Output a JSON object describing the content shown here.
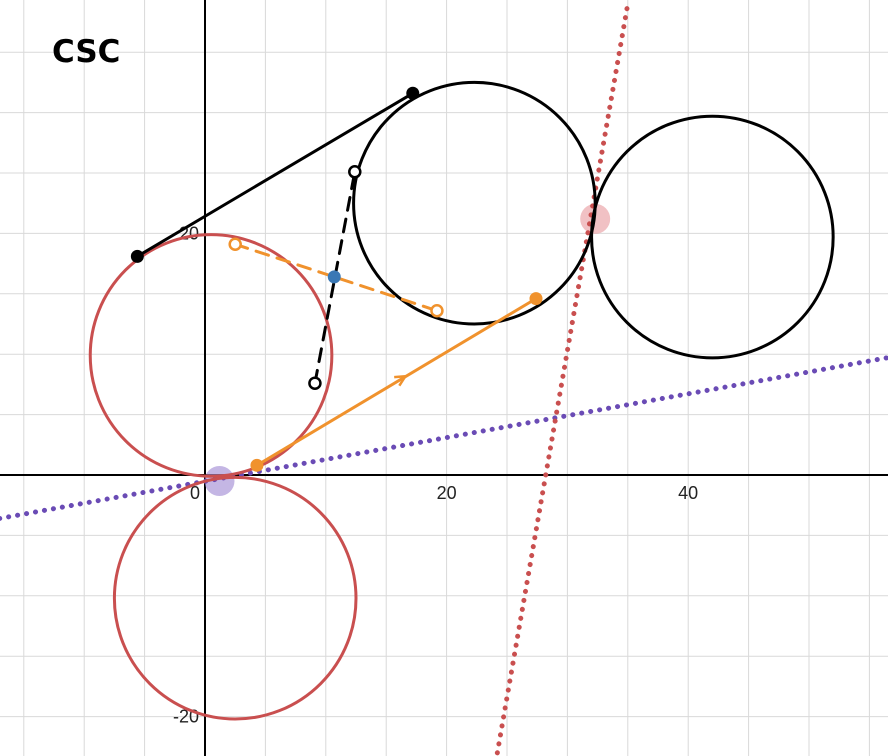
{
  "title_label": "CSC",
  "axes": {
    "x_tick_labels": [
      "0",
      "20",
      "40"
    ],
    "y_tick_labels": [
      "20",
      "-20"
    ]
  },
  "chart_data": {
    "type": "geometry",
    "x_range": [
      -17,
      57
    ],
    "y_range": [
      -23,
      39
    ],
    "grid": true,
    "grid_step": 5,
    "colors": {
      "grid": "#d9d9d9",
      "axis": "#000000",
      "black": "#000000",
      "red": "#c94f4f",
      "orange": "#f0922d",
      "blue": "#3a78b5",
      "purple": "#6a4bb5",
      "purple_halo": "#a48fd6",
      "red_halo": "#eaa0a5"
    },
    "circles": [
      {
        "name": "red-circle-upper",
        "center": [
          0.5,
          9.9
        ],
        "r": 10.0,
        "color": "red"
      },
      {
        "name": "red-circle-lower",
        "center": [
          2.5,
          -10.2
        ],
        "r": 10.0,
        "color": "red"
      },
      {
        "name": "black-circle-middle",
        "center": [
          22.3,
          22.5
        ],
        "r": 10.0,
        "color": "black"
      },
      {
        "name": "black-circle-right",
        "center": [
          42.0,
          19.7
        ],
        "r": 10.0,
        "color": "black"
      }
    ],
    "segments": [
      {
        "name": "black-tangent-segment",
        "from": [
          -5.6,
          18.1
        ],
        "to": [
          17.2,
          31.6
        ],
        "color": "black",
        "dash": "solid"
      },
      {
        "name": "black-dashed-segment",
        "from": [
          9.1,
          7.6
        ],
        "to": [
          12.4,
          25.1
        ],
        "color": "black",
        "dash": "dashed"
      },
      {
        "name": "orange-dashed-segment",
        "from": [
          2.5,
          19.1
        ],
        "to": [
          19.2,
          13.6
        ],
        "color": "orange",
        "dash": "dashed"
      },
      {
        "name": "orange-segment",
        "from": [
          4.3,
          0.8
        ],
        "to": [
          27.4,
          14.6
        ],
        "color": "orange",
        "dash": "solid"
      }
    ],
    "dotted_lines": [
      {
        "name": "purple-dotted-line",
        "from": [
          -17,
          -3.6
        ],
        "to": [
          57,
          9.8
        ],
        "color": "purple"
      },
      {
        "name": "red-dotted-line",
        "from": [
          24.2,
          -23
        ],
        "to": [
          35.0,
          39.0
        ],
        "color": "red"
      }
    ],
    "points": [
      {
        "name": "black-point-left",
        "at": [
          -5.6,
          18.1
        ],
        "color": "black",
        "style": "filled"
      },
      {
        "name": "black-point-top",
        "at": [
          17.2,
          31.6
        ],
        "color": "black",
        "style": "filled"
      },
      {
        "name": "black-hollow-point-upper",
        "at": [
          12.4,
          25.1
        ],
        "color": "black",
        "style": "hollow"
      },
      {
        "name": "black-hollow-point-lower",
        "at": [
          9.1,
          7.6
        ],
        "color": "black",
        "style": "hollow"
      },
      {
        "name": "orange-hollow-point-left",
        "at": [
          2.5,
          19.1
        ],
        "color": "orange",
        "style": "hollow"
      },
      {
        "name": "orange-hollow-point-right",
        "at": [
          19.2,
          13.6
        ],
        "color": "orange",
        "style": "hollow"
      },
      {
        "name": "orange-point-right",
        "at": [
          27.4,
          14.6
        ],
        "color": "orange",
        "style": "filled"
      },
      {
        "name": "orange-point-left",
        "at": [
          4.3,
          0.8
        ],
        "color": "orange",
        "style": "filled"
      },
      {
        "name": "blue-midpoint",
        "at": [
          10.7,
          16.4
        ],
        "color": "blue",
        "style": "filled"
      }
    ],
    "highlights": [
      {
        "name": "purple-highlight-point",
        "at": [
          1.2,
          -0.5
        ],
        "color": "purple_halo"
      },
      {
        "name": "red-highlight-point",
        "at": [
          32.3,
          21.2
        ],
        "color": "red_halo"
      }
    ],
    "arrow_marker": {
      "name": "orange-direction-arrow",
      "at": [
        16.3,
        8.0
      ],
      "angle_deg": 30.9,
      "color": "orange"
    }
  }
}
